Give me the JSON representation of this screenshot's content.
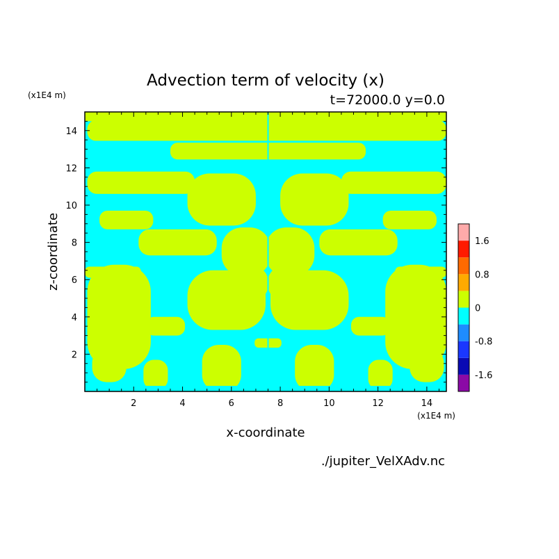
{
  "chart_data": {
    "type": "heatmap",
    "title": "Advection term of velocity (x)",
    "subtitle": "t=72000.0 y=0.0",
    "xlabel": "x-coordinate",
    "ylabel": "z-coordinate",
    "x_unit": "(x1E4 m)",
    "y_unit": "(x1E4 m)",
    "xlim": [
      0,
      14.8
    ],
    "ylim": [
      0,
      15
    ],
    "x_ticks": [
      2,
      4,
      6,
      8,
      10,
      12,
      14
    ],
    "y_ticks": [
      2,
      4,
      6,
      8,
      10,
      12,
      14
    ],
    "colorbar": {
      "levels": [
        -2.0,
        -1.6,
        -1.2,
        -0.8,
        -0.4,
        0,
        0.4,
        0.8,
        1.2,
        1.6,
        2.0
      ],
      "colors": [
        "#8b0aa6",
        "#0a0ab4",
        "#1a37ff",
        "#1e8cff",
        "#00ffff",
        "#ccff00",
        "#ffaa00",
        "#ff6a00",
        "#ff1a00",
        "#ffaaaa"
      ],
      "tick_labels": [
        "1.6",
        "0.8",
        "0",
        "-0.8",
        "-1.6"
      ],
      "tick_values": [
        1.6,
        0.8,
        0,
        -0.8,
        -1.6
      ]
    },
    "field_description": "Field values near zero: alternating slightly negative (cyan, -0.4 to 0) and slightly positive (yellow-green, 0 to 0.4) patches, mirror-symmetric about x=7.5",
    "bands": [
      {
        "z": [
          0.0,
          0.3
        ],
        "value": -0.2
      },
      {
        "z": [
          14.5,
          15.0
        ],
        "value": 0.2
      }
    ],
    "positive_regions": [
      {
        "cx": 7.5,
        "cz": 14.0,
        "rx": 7.4,
        "rz": 0.55
      },
      {
        "cx": 7.5,
        "cz": 12.9,
        "rx": 4.0,
        "rz": 0.45
      },
      {
        "cx": 2.3,
        "cz": 11.2,
        "rx": 2.2,
        "rz": 0.6
      },
      {
        "cx": 12.7,
        "cz": 11.2,
        "rx": 2.2,
        "rz": 0.6
      },
      {
        "cx": 5.6,
        "cz": 10.3,
        "rx": 1.4,
        "rz": 1.4
      },
      {
        "cx": 9.4,
        "cz": 10.3,
        "rx": 1.4,
        "rz": 1.4
      },
      {
        "cx": 1.7,
        "cz": 9.2,
        "rx": 1.1,
        "rz": 0.5
      },
      {
        "cx": 13.3,
        "cz": 9.2,
        "rx": 1.1,
        "rz": 0.5
      },
      {
        "cx": 3.8,
        "cz": 8.0,
        "rx": 1.6,
        "rz": 0.7
      },
      {
        "cx": 11.2,
        "cz": 8.0,
        "rx": 1.6,
        "rz": 0.7
      },
      {
        "cx": 6.6,
        "cz": 7.5,
        "rx": 1.0,
        "rz": 1.3
      },
      {
        "cx": 8.4,
        "cz": 7.5,
        "rx": 1.0,
        "rz": 1.3
      },
      {
        "cx": 1.0,
        "cz": 6.4,
        "rx": 1.3,
        "rz": 0.3
      },
      {
        "cx": 14.0,
        "cz": 6.4,
        "rx": 1.3,
        "rz": 0.3
      },
      {
        "cx": 5.8,
        "cz": 4.9,
        "rx": 1.6,
        "rz": 1.6
      },
      {
        "cx": 9.2,
        "cz": 4.9,
        "rx": 1.6,
        "rz": 1.6
      },
      {
        "cx": 6.8,
        "cz": 5.8,
        "rx": 0.7,
        "rz": 0.9
      },
      {
        "cx": 8.2,
        "cz": 5.8,
        "rx": 0.7,
        "rz": 0.9
      },
      {
        "cx": 13.6,
        "cz": 4.0,
        "rx": 1.3,
        "rz": 2.8
      },
      {
        "cx": 1.4,
        "cz": 4.0,
        "rx": 1.3,
        "rz": 2.8
      },
      {
        "cx": 3.3,
        "cz": 3.5,
        "rx": 0.8,
        "rz": 0.5
      },
      {
        "cx": 11.7,
        "cz": 3.5,
        "rx": 0.8,
        "rz": 0.5
      },
      {
        "cx": 7.5,
        "cz": 2.6,
        "rx": 0.55,
        "rz": 0.25
      },
      {
        "cx": 5.6,
        "cz": 1.2,
        "rx": 0.8,
        "rz": 1.3
      },
      {
        "cx": 9.4,
        "cz": 1.2,
        "rx": 0.8,
        "rz": 1.3
      },
      {
        "cx": 1.0,
        "cz": 1.4,
        "rx": 0.7,
        "rz": 0.9
      },
      {
        "cx": 14.0,
        "cz": 1.4,
        "rx": 0.7,
        "rz": 0.9
      },
      {
        "cx": 2.9,
        "cz": 0.9,
        "rx": 0.5,
        "rz": 0.8
      },
      {
        "cx": 12.1,
        "cz": 0.9,
        "rx": 0.5,
        "rz": 0.8
      }
    ]
  },
  "footer": {
    "filename": "./jupiter_VelXAdv.nc"
  }
}
